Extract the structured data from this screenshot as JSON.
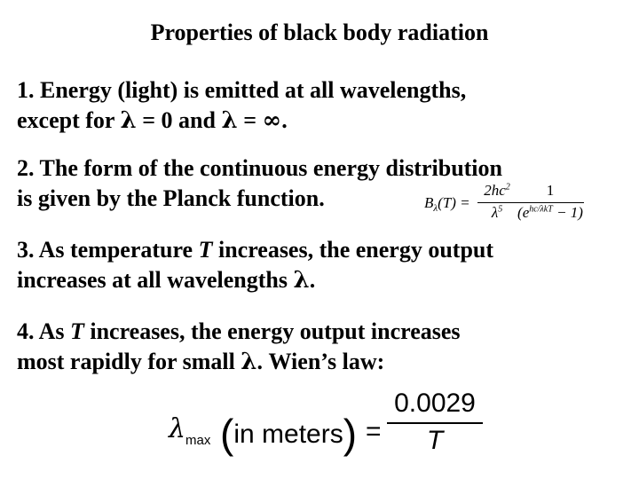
{
  "title": "Properties of black body radiation",
  "items": [
    {
      "line1": "1. Energy (light) is emitted at all wavelengths,",
      "line2_a": "except for ",
      "lambda": "λ",
      "line2_b": " = 0 and ",
      "line2_c": " = ",
      "infinity": "∞",
      "line2_d": "."
    },
    {
      "line1": "2. The form of the continuous energy distribution",
      "line2": "is given by the Planck function."
    },
    {
      "line1_a": "3. As temperature ",
      "T": "T",
      "line1_b": " increases, the energy output",
      "line2_a": "increases at all wavelengths ",
      "line2_b": "."
    },
    {
      "line1_a": "4. As ",
      "line1_b": " increases, the energy output increases",
      "line2_a": "most rapidly for small ",
      "line2_b": ". Wien’s law:"
    }
  ],
  "planck_formula": {
    "lhs_B": "B",
    "lhs_sub": "λ",
    "lhs_rest": "(T) =",
    "num1": "2hc",
    "num1_sup": "2",
    "den1": "λ",
    "den1_sup": "5",
    "num2": "1",
    "den2_a": "(e",
    "den2_sup": "hc/λkT",
    "den2_b": " − 1)"
  },
  "wien_formula": {
    "lambda": "λ",
    "sub": "max",
    "open": "(",
    "text": "in meters",
    "close": ")",
    "equals": "=",
    "numerator": "0.0029",
    "denominator": "T"
  }
}
